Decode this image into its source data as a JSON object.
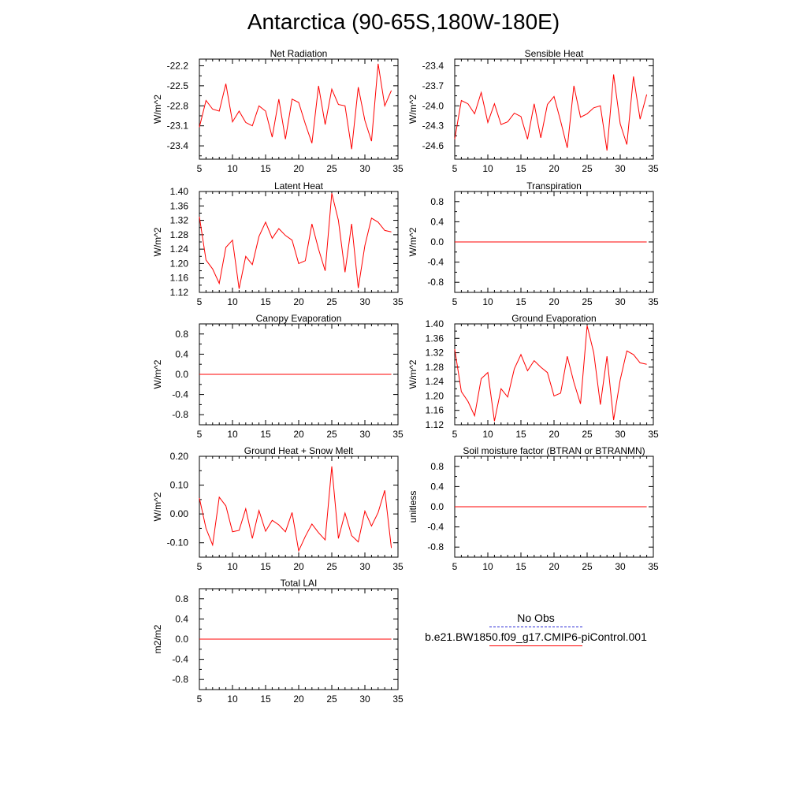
{
  "figure": {
    "title": "Antarctica (90-65S,180W-180E)"
  },
  "legend": {
    "obs_label": "No Obs",
    "model_label": "b.e21.BW1850.f09_g17.CMIP6-piControl.001",
    "obs_color": "#2b2bd6",
    "model_color": "#ff0000"
  },
  "chart_data": [
    {
      "type": "line",
      "title": "Net Radiation",
      "ylabel": "W/m^2",
      "xlim": [
        5,
        35
      ],
      "ylim": [
        -23.6,
        -22.1
      ],
      "xticks": [
        "5",
        "10",
        "15",
        "20",
        "25",
        "30",
        "35"
      ],
      "yticks": [
        "-22.2",
        "-22.5",
        "-22.8",
        "-23.1",
        "-23.4"
      ],
      "series": [
        {
          "x": [
            5,
            6,
            7,
            8,
            9,
            10,
            11,
            12,
            13,
            14,
            15,
            16,
            17,
            18,
            19,
            20,
            21,
            22,
            23,
            24,
            25,
            26,
            27,
            28,
            29,
            30,
            31,
            32,
            33,
            34
          ],
          "values": [
            -23.12,
            -22.72,
            -22.85,
            -22.88,
            -22.47,
            -23.04,
            -22.88,
            -23.05,
            -23.1,
            -22.8,
            -22.88,
            -23.27,
            -22.7,
            -23.3,
            -22.7,
            -22.75,
            -23.07,
            -23.36,
            -22.5,
            -23.08,
            -22.55,
            -22.78,
            -22.8,
            -23.45,
            -22.52,
            -23.02,
            -23.33,
            -22.17,
            -22.8,
            -22.57
          ]
        }
      ]
    },
    {
      "type": "line",
      "title": "Sensible Heat",
      "ylabel": "W/m^2",
      "xlim": [
        5,
        35
      ],
      "ylim": [
        -24.8,
        -23.3
      ],
      "xticks": [
        "5",
        "10",
        "15",
        "20",
        "25",
        "30",
        "35"
      ],
      "yticks": [
        "-23.4",
        "-23.7",
        "-24.0",
        "-24.3",
        "-24.6"
      ],
      "series": [
        {
          "x": [
            5,
            6,
            7,
            8,
            9,
            10,
            11,
            12,
            13,
            14,
            15,
            16,
            17,
            18,
            19,
            20,
            21,
            22,
            23,
            24,
            25,
            26,
            27,
            28,
            29,
            30,
            31,
            32,
            33,
            34
          ],
          "values": [
            -24.5,
            -23.92,
            -23.97,
            -24.12,
            -23.8,
            -24.25,
            -23.97,
            -24.28,
            -24.24,
            -24.11,
            -24.16,
            -24.5,
            -23.97,
            -24.48,
            -23.98,
            -23.86,
            -24.23,
            -24.63,
            -23.7,
            -24.17,
            -24.12,
            -24.03,
            -24.0,
            -24.67,
            -23.53,
            -24.27,
            -24.58,
            -23.56,
            -24.2,
            -23.83
          ]
        }
      ]
    },
    {
      "type": "line",
      "title": "Latent Heat",
      "ylabel": "W/m^2",
      "xlim": [
        5,
        35
      ],
      "ylim": [
        1.12,
        1.4
      ],
      "xticks": [
        "5",
        "10",
        "15",
        "20",
        "25",
        "30",
        "35"
      ],
      "yticks": [
        "1.40",
        "1.36",
        "1.32",
        "1.28",
        "1.24",
        "1.20",
        "1.16",
        "1.12"
      ],
      "series": [
        {
          "x": [
            5,
            6,
            7,
            8,
            9,
            10,
            11,
            12,
            13,
            14,
            15,
            16,
            17,
            18,
            19,
            20,
            21,
            22,
            23,
            24,
            25,
            26,
            27,
            28,
            29,
            30,
            31,
            32,
            33,
            34
          ],
          "values": [
            1.33,
            1.21,
            1.185,
            1.145,
            1.245,
            1.265,
            1.13,
            1.22,
            1.197,
            1.275,
            1.315,
            1.27,
            1.297,
            1.278,
            1.265,
            1.2,
            1.208,
            1.31,
            1.24,
            1.18,
            1.395,
            1.32,
            1.176,
            1.31,
            1.132,
            1.25,
            1.326,
            1.315,
            1.292,
            1.288
          ]
        }
      ]
    },
    {
      "type": "line",
      "title": "Transpiration",
      "ylabel": "W/m^2",
      "xlim": [
        5,
        35
      ],
      "ylim": [
        -1.0,
        1.0
      ],
      "xticks": [
        "5",
        "10",
        "15",
        "20",
        "25",
        "30",
        "35"
      ],
      "yticks": [
        "0.8",
        "0.4",
        "0.0",
        "-0.4",
        "-0.8"
      ],
      "series": [
        {
          "x": [
            5,
            34
          ],
          "values": [
            0.0,
            0.0
          ]
        }
      ]
    },
    {
      "type": "line",
      "title": "Canopy Evaporation",
      "ylabel": "W/m^2",
      "xlim": [
        5,
        35
      ],
      "ylim": [
        -1.0,
        1.0
      ],
      "xticks": [
        "5",
        "10",
        "15",
        "20",
        "25",
        "30",
        "35"
      ],
      "yticks": [
        "0.8",
        "0.4",
        "0.0",
        "-0.4",
        "-0.8"
      ],
      "series": [
        {
          "x": [
            5,
            34
          ],
          "values": [
            0.0,
            0.0
          ]
        }
      ]
    },
    {
      "type": "line",
      "title": "Ground Evaporation",
      "ylabel": "W/m^2",
      "xlim": [
        5,
        35
      ],
      "ylim": [
        1.12,
        1.4
      ],
      "xticks": [
        "5",
        "10",
        "15",
        "20",
        "25",
        "30",
        "35"
      ],
      "yticks": [
        "1.40",
        "1.36",
        "1.32",
        "1.28",
        "1.24",
        "1.20",
        "1.16",
        "1.12"
      ],
      "series": [
        {
          "x": [
            5,
            6,
            7,
            8,
            9,
            10,
            11,
            12,
            13,
            14,
            15,
            16,
            17,
            18,
            19,
            20,
            21,
            22,
            23,
            24,
            25,
            26,
            27,
            28,
            29,
            30,
            31,
            32,
            33,
            34
          ],
          "values": [
            1.33,
            1.212,
            1.185,
            1.145,
            1.248,
            1.265,
            1.13,
            1.22,
            1.197,
            1.275,
            1.315,
            1.27,
            1.298,
            1.28,
            1.265,
            1.2,
            1.208,
            1.31,
            1.238,
            1.178,
            1.395,
            1.32,
            1.176,
            1.31,
            1.133,
            1.245,
            1.325,
            1.315,
            1.292,
            1.288
          ]
        }
      ]
    },
    {
      "type": "line",
      "title": "Ground Heat + Snow Melt",
      "ylabel": "W/m^2",
      "xlim": [
        5,
        35
      ],
      "ylim": [
        -0.15,
        0.2
      ],
      "xticks": [
        "5",
        "10",
        "15",
        "20",
        "25",
        "30",
        "35"
      ],
      "yticks": [
        "0.20",
        "0.10",
        "0.00",
        "-0.10"
      ],
      "series": [
        {
          "x": [
            5,
            6,
            7,
            8,
            9,
            10,
            11,
            12,
            13,
            14,
            15,
            16,
            17,
            18,
            19,
            20,
            21,
            22,
            23,
            24,
            25,
            26,
            27,
            28,
            29,
            30,
            31,
            32,
            33,
            34
          ],
          "values": [
            0.055,
            -0.05,
            -0.108,
            0.058,
            0.028,
            -0.062,
            -0.057,
            0.018,
            -0.085,
            0.012,
            -0.06,
            -0.022,
            -0.038,
            -0.062,
            0.005,
            -0.128,
            -0.078,
            -0.035,
            -0.065,
            -0.09,
            0.165,
            -0.085,
            0.003,
            -0.075,
            -0.097,
            0.01,
            -0.042,
            0.005,
            0.082,
            -0.118
          ]
        }
      ]
    },
    {
      "type": "line",
      "title": "Soil moisture factor (BTRAN or BTRANMN)",
      "ylabel": "unitless",
      "xlim": [
        5,
        35
      ],
      "ylim": [
        -1.0,
        1.0
      ],
      "xticks": [
        "5",
        "10",
        "15",
        "20",
        "25",
        "30",
        "35"
      ],
      "yticks": [
        "0.8",
        "0.4",
        "0.0",
        "-0.4",
        "-0.8"
      ],
      "series": [
        {
          "x": [
            5,
            34
          ],
          "values": [
            0.0,
            0.0
          ]
        }
      ]
    },
    {
      "type": "line",
      "title": "Total LAI",
      "ylabel": "m2/m2",
      "xlim": [
        5,
        35
      ],
      "ylim": [
        -1.0,
        1.0
      ],
      "xticks": [
        "5",
        "10",
        "15",
        "20",
        "25",
        "30",
        "35"
      ],
      "yticks": [
        "0.8",
        "0.4",
        "0.0",
        "-0.4",
        "-0.8"
      ],
      "series": [
        {
          "x": [
            5,
            34
          ],
          "values": [
            0.0,
            0.0
          ]
        }
      ]
    }
  ]
}
